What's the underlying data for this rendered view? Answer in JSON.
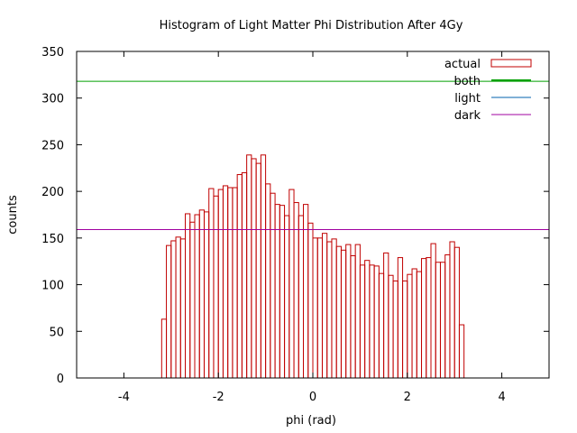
{
  "chart_data": {
    "type": "bar",
    "title": "Histogram of Light Matter Phi Distribution After 4Gy",
    "xlabel": "phi (rad)",
    "ylabel": "counts",
    "xlim": [
      -5,
      5
    ],
    "ylim": [
      0,
      350
    ],
    "xticks": [
      -4,
      -2,
      0,
      2,
      4
    ],
    "yticks": [
      0,
      50,
      100,
      150,
      200,
      250,
      300,
      350
    ],
    "bin_start": -3.2,
    "bin_width": 0.1,
    "grid": false,
    "legend_position": "top-right",
    "series": [
      {
        "name": "actual",
        "style": "histogram",
        "color": "#c00000",
        "values": [
          63,
          142,
          147,
          151,
          149,
          176,
          167,
          175,
          180,
          178,
          203,
          195,
          202,
          206,
          204,
          204,
          218,
          220,
          239,
          235,
          230,
          239,
          208,
          198,
          186,
          185,
          174,
          202,
          188,
          174,
          186,
          166,
          150,
          150,
          155,
          146,
          149,
          141,
          137,
          143,
          131,
          143,
          121,
          126,
          121,
          120,
          112,
          134,
          110,
          104,
          129,
          104,
          111,
          117,
          114,
          128,
          129,
          144,
          124,
          124,
          132,
          146,
          140,
          57
        ]
      },
      {
        "name": "both",
        "style": "hline",
        "color": "#00a000",
        "y": 318
      },
      {
        "name": "light",
        "style": "hline",
        "color": "#0060ad",
        "y": 0
      },
      {
        "name": "dark",
        "style": "hline",
        "color": "#a000a0",
        "y": 159
      }
    ]
  }
}
